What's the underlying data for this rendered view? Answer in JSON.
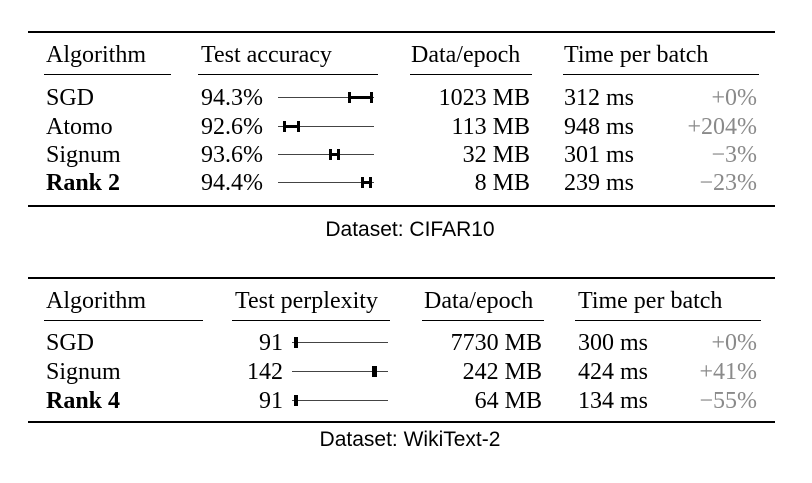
{
  "table1": {
    "headers": {
      "algorithm": "Algorithm",
      "metric": "Test accuracy",
      "data": "Data/epoch",
      "time": "Time per batch"
    },
    "rows": [
      {
        "algorithm": "SGD",
        "metric": "94.3%",
        "data": "1023 MB",
        "time": "312 ms",
        "delta": "+0%",
        "bold": false
      },
      {
        "algorithm": "Atomo",
        "metric": "92.6%",
        "data": "113 MB",
        "time": "948 ms",
        "delta": "+204%",
        "bold": false
      },
      {
        "algorithm": "Signum",
        "metric": "93.6%",
        "data": "32 MB",
        "time": "301 ms",
        "delta": "−3%",
        "bold": false
      },
      {
        "algorithm": "Rank 2",
        "metric": "94.4%",
        "data": "8 MB",
        "time": "239 ms",
        "delta": "−23%",
        "bold": true
      }
    ],
    "caption": "Dataset: CIFAR10"
  },
  "table2": {
    "headers": {
      "algorithm": "Algorithm",
      "metric": "Test perplexity",
      "data": "Data/epoch",
      "time": "Time per batch"
    },
    "rows": [
      {
        "algorithm": "SGD",
        "metric": "91",
        "data": "7730 MB",
        "time": "300 ms",
        "delta": "+0%",
        "bold": false
      },
      {
        "algorithm": "Signum",
        "metric": "142",
        "data": "242 MB",
        "time": "424 ms",
        "delta": "+41%",
        "bold": false
      },
      {
        "algorithm": "Rank 4",
        "metric": "91",
        "data": "64 MB",
        "time": "134 ms",
        "delta": "−55%",
        "bold": true
      }
    ],
    "caption": "Dataset: WikiText-2"
  }
}
